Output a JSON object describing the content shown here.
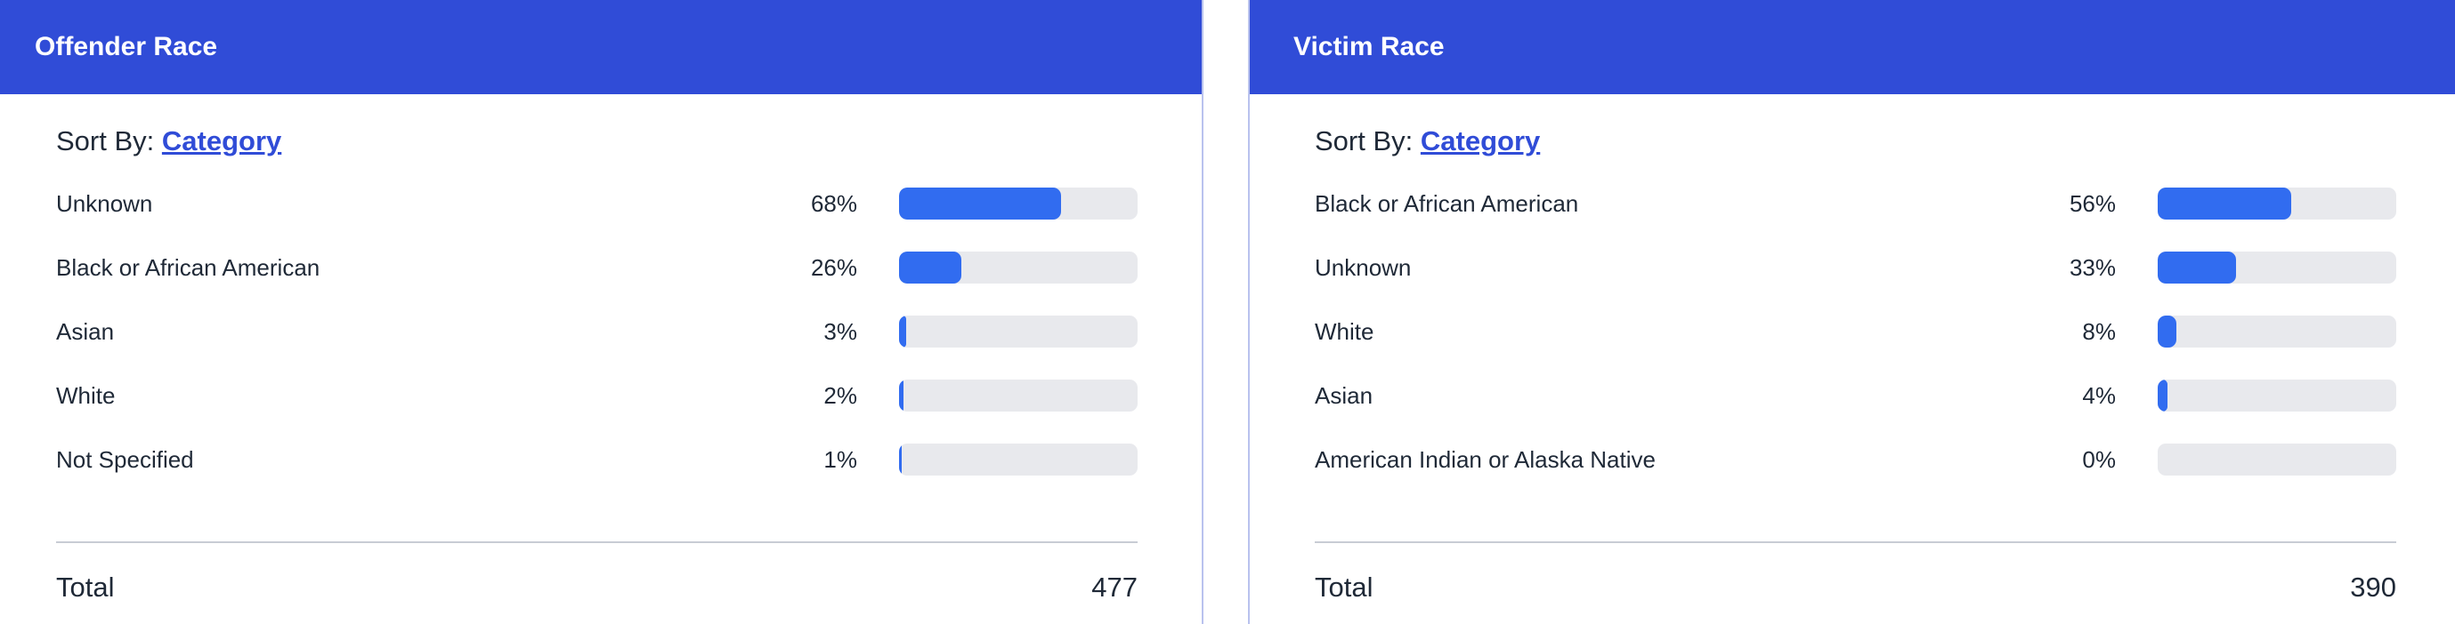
{
  "panels": [
    {
      "title": "Offender Race",
      "sort_prefix": "Sort By:",
      "sort_link": "Category",
      "rows": [
        {
          "label": "Unknown",
          "percent_label": "68%",
          "percent": 68
        },
        {
          "label": "Black or African American",
          "percent_label": "26%",
          "percent": 26
        },
        {
          "label": "Asian",
          "percent_label": "3%",
          "percent": 3
        },
        {
          "label": "White",
          "percent_label": "2%",
          "percent": 2
        },
        {
          "label": "Not Specified",
          "percent_label": "1%",
          "percent": 1
        }
      ],
      "total_label": "Total",
      "total_value": "477"
    },
    {
      "title": "Victim Race",
      "sort_prefix": "Sort By:",
      "sort_link": "Category",
      "rows": [
        {
          "label": "Black or African American",
          "percent_label": "56%",
          "percent": 56
        },
        {
          "label": "Unknown",
          "percent_label": "33%",
          "percent": 33
        },
        {
          "label": "White",
          "percent_label": "8%",
          "percent": 8
        },
        {
          "label": "Asian",
          "percent_label": "4%",
          "percent": 4
        },
        {
          "label": "American Indian or Alaska Native",
          "percent_label": "0%",
          "percent": 0
        }
      ],
      "total_label": "Total",
      "total_value": "390"
    }
  ],
  "colors": {
    "header_bg": "#304cd7",
    "bar_fill": "#316cf0",
    "bar_track": "#e8e9ed",
    "link": "#304cd7"
  }
}
